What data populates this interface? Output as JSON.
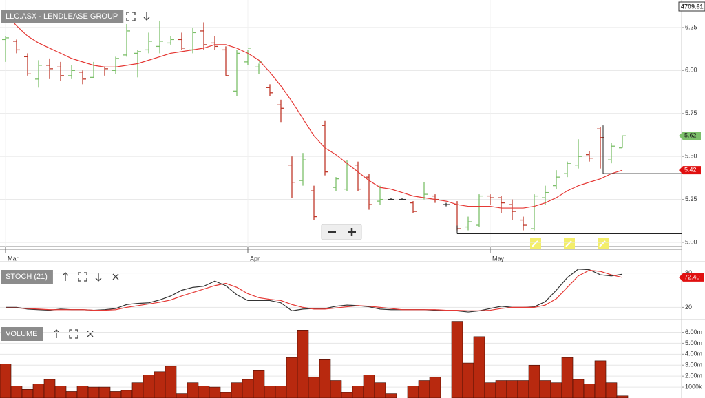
{
  "chart_data": [
    {
      "type": "ohlc",
      "title": "LLC.ASX - LENDLEASE GROUP",
      "categories": [
        "Mar",
        null,
        null,
        null,
        null,
        null,
        null,
        null,
        null,
        null,
        null,
        null,
        null,
        null,
        null,
        null,
        null,
        null,
        null,
        null,
        null,
        null,
        "Apr",
        null,
        null,
        null,
        null,
        null,
        null,
        null,
        null,
        null,
        null,
        null,
        null,
        null,
        null,
        null,
        null,
        null,
        null,
        null,
        null,
        null,
        "May",
        null,
        null,
        null,
        null,
        null,
        null,
        null,
        null,
        null,
        null,
        null,
        null
      ],
      "open": [
        6.18,
        6.17,
        6.08,
        5.95,
        6.03,
        6.02,
        5.97,
        5.99,
        5.96,
        6.02,
        6.0,
        6.09,
        6.1,
        6.12,
        6.14,
        6.16,
        6.18,
        6.12,
        6.23,
        6.16,
        6.12,
        5.88,
        6.05,
        6.02,
        5.9,
        5.8,
        5.45,
        5.36,
        5.3,
        5.68,
        5.32,
        5.31,
        5.45,
        5.38,
        5.24,
        5.25,
        5.25,
        5.23,
        5.26,
        5.27,
        5.22,
        5.22,
        5.09,
        5.1,
        5.27,
        5.26,
        5.22,
        5.13,
        5.08,
        5.26,
        5.33,
        5.4,
        5.45,
        5.51,
        5.66,
        5.48,
        5.55
      ],
      "high": [
        6.2,
        6.18,
        6.1,
        6.06,
        6.07,
        6.05,
        6.03,
        6.0,
        6.05,
        6.02,
        6.08,
        6.27,
        6.12,
        6.22,
        6.29,
        6.2,
        6.22,
        6.25,
        6.28,
        6.2,
        6.14,
        6.12,
        6.12,
        6.04,
        5.92,
        5.83,
        5.5,
        5.52,
        5.33,
        5.71,
        5.38,
        5.48,
        5.47,
        5.4,
        5.33,
        5.26,
        5.26,
        5.24,
        5.35,
        5.28,
        5.23,
        5.24,
        5.15,
        5.28,
        5.28,
        5.27,
        5.25,
        5.15,
        5.28,
        5.33,
        5.42,
        5.47,
        5.6,
        5.53,
        5.67,
        5.58,
        5.62
      ],
      "low": [
        6.05,
        6.1,
        5.97,
        5.9,
        5.95,
        5.94,
        5.95,
        5.92,
        5.96,
        5.97,
        5.98,
        6.08,
        5.96,
        6.1,
        6.1,
        6.15,
        6.12,
        6.1,
        6.12,
        6.12,
        5.97,
        5.85,
        6.03,
        5.98,
        5.85,
        5.7,
        5.26,
        5.33,
        5.13,
        5.39,
        5.3,
        5.3,
        5.3,
        5.19,
        5.22,
        5.25,
        5.25,
        5.17,
        5.25,
        5.23,
        5.21,
        5.07,
        5.07,
        5.09,
        5.22,
        5.17,
        5.13,
        5.07,
        5.07,
        5.22,
        5.31,
        5.38,
        5.43,
        5.47,
        5.43,
        5.46,
        5.55
      ],
      "close": [
        6.19,
        6.12,
        5.98,
        6.03,
        6.01,
        5.97,
        6.0,
        5.95,
        6.03,
        6.01,
        6.07,
        6.23,
        6.11,
        6.17,
        6.17,
        6.18,
        6.13,
        6.22,
        6.15,
        6.14,
        5.97,
        6.1,
        6.13,
        6.05,
        5.87,
        5.78,
        5.35,
        5.48,
        5.15,
        5.41,
        5.37,
        5.45,
        5.31,
        5.22,
        5.25,
        5.25,
        5.25,
        5.18,
        5.28,
        5.25,
        5.22,
        5.08,
        5.12,
        5.27,
        5.26,
        5.23,
        5.18,
        5.1,
        5.27,
        5.29,
        5.38,
        5.46,
        5.5,
        5.49,
        5.61,
        5.56,
        5.62
      ],
      "colors": {
        "up": "#7cbf6a",
        "down": "#c0392b",
        "flat": "#333333"
      },
      "lines": [
        {
          "color": "#e53935",
          "values": [
            6.33,
            6.26,
            6.2,
            6.16,
            6.13,
            6.1,
            6.07,
            6.05,
            6.03,
            6.02,
            6.02,
            6.03,
            6.04,
            6.06,
            6.08,
            6.1,
            6.11,
            6.12,
            6.13,
            6.15,
            6.15,
            6.13,
            6.1,
            6.06,
            5.99,
            5.91,
            5.82,
            5.72,
            5.62,
            5.55,
            5.51,
            5.46,
            5.41,
            5.36,
            5.32,
            5.31,
            5.29,
            5.27,
            5.26,
            5.25,
            5.24,
            5.22,
            5.21,
            5.21,
            5.21,
            5.2,
            5.2,
            5.2,
            5.21,
            5.23,
            5.26,
            5.3,
            5.33,
            5.35,
            5.37,
            5.4,
            5.42
          ]
        }
      ],
      "ylim": [
        4.96,
        6.41
      ],
      "yticks": [
        {
          "value": 5,
          "label": "5.00"
        },
        5.25,
        {
          "value": 5.5,
          "label": "5.50"
        },
        5.75,
        {
          "value": 6,
          "label": "6.00"
        },
        6.25
      ],
      "grid": true,
      "hlines": [
        5.4,
        5.05
      ],
      "tags": [
        {
          "value": 5.62,
          "color": "#7cbf6a"
        },
        {
          "value": 5.42,
          "color": "#e01010"
        }
      ],
      "corner_label": "4709.61"
    },
    {
      "type": "line",
      "title": "STOCH (21)",
      "series": [
        {
          "color": "#333333",
          "values": [
            20,
            20,
            17,
            16,
            15,
            17,
            16,
            16,
            15,
            16,
            18,
            25,
            27,
            28,
            33,
            40,
            50,
            55,
            57,
            66,
            58,
            42,
            32,
            32,
            32,
            28,
            14,
            17,
            18,
            18,
            22,
            24,
            23,
            21,
            17,
            16,
            16,
            16,
            16,
            15,
            15,
            14,
            12,
            14,
            18,
            22,
            20,
            20,
            21,
            30,
            50,
            72,
            87,
            86,
            77,
            75,
            78
          ]
        },
        {
          "color": "#e53935",
          "values": [
            19,
            19,
            18,
            17,
            16,
            16,
            16,
            16,
            15,
            15,
            16,
            20,
            23,
            26,
            29,
            33,
            40,
            46,
            52,
            58,
            62,
            55,
            44,
            37,
            34,
            32,
            25,
            20,
            17,
            17,
            19,
            21,
            23,
            22,
            20,
            18,
            16,
            16,
            16,
            16,
            15,
            15,
            14,
            14,
            15,
            18,
            20,
            20,
            20,
            24,
            35,
            55,
            75,
            85,
            83,
            77,
            72.4
          ]
        }
      ],
      "ylim": [
        0,
        100
      ],
      "yticks": [
        20,
        80
      ],
      "grid": true,
      "tag": {
        "value": 72.4,
        "label": "72.40",
        "color": "#e01010"
      }
    },
    {
      "type": "bar",
      "title": "VOLUME",
      "color": "#b8290f",
      "values": [
        3100000,
        1100000,
        800000,
        1300000,
        1700000,
        1100000,
        600000,
        1100000,
        1000000,
        1000000,
        600000,
        700000,
        1400000,
        2100000,
        2400000,
        2900000,
        400000,
        1400000,
        1100000,
        1000000,
        500000,
        1400000,
        1700000,
        2500000,
        1100000,
        1100000,
        3700000,
        6200000,
        1900000,
        3500000,
        1600000,
        500000,
        1100000,
        2100000,
        1400000,
        400000,
        0,
        1100000,
        1600000,
        1900000,
        0,
        7000000,
        3200000,
        5600000,
        1400000,
        1600000,
        1600000,
        1600000,
        3000000,
        1600000,
        1400000,
        3700000,
        1700000,
        1300000,
        3400000,
        1400000,
        200000
      ],
      "ylim": [
        0,
        7100000
      ],
      "yticks": [
        {
          "value": 1000000,
          "label": "1000k"
        },
        {
          "value": 2000000,
          "label": "2.00m"
        },
        {
          "value": 3000000,
          "label": "3.00m"
        },
        {
          "value": 4000000,
          "label": "4.00m"
        },
        {
          "value": 5000000,
          "label": "5.00m"
        },
        {
          "value": 6000000,
          "label": "6.00m"
        }
      ],
      "grid": true
    }
  ]
}
